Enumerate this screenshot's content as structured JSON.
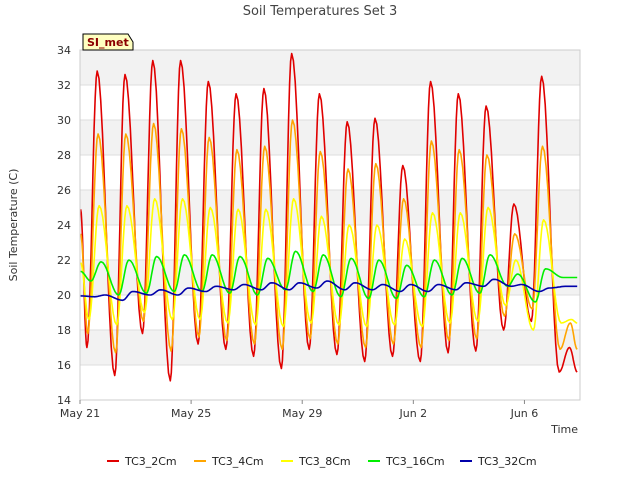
{
  "chart_data": {
    "type": "line",
    "title": "Soil Temperatures Set 3",
    "xlabel": "Time",
    "ylabel": "Soil Temperature (C)",
    "badge": "SI_met",
    "ylim": [
      14,
      34
    ],
    "yticks": [
      14,
      16,
      18,
      20,
      22,
      24,
      26,
      28,
      30,
      32,
      34
    ],
    "xlim": [
      "2023-05-21",
      "2023-06-08"
    ],
    "xticks": [
      {
        "date": "2023-05-21",
        "label": "May 21"
      },
      {
        "date": "2023-05-25",
        "label": "May 25"
      },
      {
        "date": "2023-05-29",
        "label": "May 29"
      },
      {
        "date": "2023-06-02",
        "label": "Jun 2"
      },
      {
        "date": "2023-06-06",
        "label": "Jun 6"
      }
    ],
    "grid": true,
    "legend_position": "bottom",
    "days": [
      "May 21",
      "May 22",
      "May 23",
      "May 24",
      "May 25",
      "May 26",
      "May 27",
      "May 28",
      "May 29",
      "May 30",
      "May 31",
      "Jun 1",
      "Jun 2",
      "Jun 3",
      "Jun 4",
      "Jun 5",
      "Jun 6",
      "Jun 7"
    ],
    "series": [
      {
        "name": "TC3_2Cm",
        "color": "#e00000",
        "daily_min": [
          17.0,
          15.4,
          17.8,
          15.1,
          17.2,
          16.9,
          16.5,
          15.8,
          16.9,
          16.6,
          16.2,
          16.5,
          16.2,
          16.7,
          16.8,
          18.0,
          18.5,
          15.6
        ],
        "daily_max": [
          32.8,
          32.6,
          33.4,
          33.4,
          32.2,
          31.5,
          31.8,
          33.8,
          31.5,
          29.9,
          30.1,
          27.4,
          32.2,
          31.5,
          30.8,
          25.2,
          32.5,
          17.0
        ]
      },
      {
        "name": "TC3_4Cm",
        "color": "#ffa500",
        "daily_min": [
          17.8,
          16.7,
          18.5,
          16.8,
          17.6,
          17.4,
          17.2,
          16.9,
          17.5,
          17.2,
          17.0,
          17.2,
          17.0,
          17.4,
          17.5,
          18.8,
          19.2,
          16.9
        ],
        "daily_max": [
          29.2,
          29.2,
          29.8,
          29.5,
          29.0,
          28.3,
          28.5,
          30.0,
          28.2,
          27.2,
          27.5,
          25.5,
          28.8,
          28.3,
          28.0,
          23.5,
          28.5,
          18.4
        ]
      },
      {
        "name": "TC3_8Cm",
        "color": "#ffff00",
        "daily_min": [
          18.6,
          18.3,
          19.0,
          18.6,
          18.6,
          18.4,
          18.3,
          18.2,
          18.4,
          18.3,
          18.2,
          18.3,
          18.2,
          18.4,
          18.5,
          19.4,
          18.0,
          18.4
        ],
        "daily_max": [
          25.1,
          25.1,
          25.5,
          25.5,
          25.0,
          24.9,
          24.9,
          25.5,
          24.5,
          24.0,
          24.0,
          23.2,
          24.7,
          24.7,
          25.0,
          22.0,
          24.3,
          18.6
        ]
      },
      {
        "name": "TC3_16Cm",
        "color": "#00ee00",
        "daily_min": [
          20.8,
          20.0,
          20.1,
          20.2,
          20.2,
          20.1,
          20.0,
          20.3,
          20.2,
          19.9,
          19.8,
          19.8,
          19.9,
          20.0,
          20.1,
          20.5,
          19.6,
          21.0
        ],
        "daily_max": [
          21.9,
          22.0,
          22.2,
          22.3,
          22.3,
          22.2,
          22.1,
          22.5,
          22.3,
          22.1,
          22.0,
          21.7,
          22.0,
          22.1,
          22.3,
          21.2,
          21.5,
          21.0
        ]
      },
      {
        "name": "TC3_32Cm",
        "color": "#0000aa",
        "daily_min": [
          19.9,
          19.7,
          20.0,
          20.0,
          20.2,
          20.3,
          20.3,
          20.3,
          20.4,
          20.3,
          20.3,
          20.2,
          20.2,
          20.3,
          20.5,
          20.5,
          20.2,
          20.5
        ],
        "daily_max": [
          20.0,
          20.2,
          20.3,
          20.4,
          20.5,
          20.6,
          20.7,
          20.7,
          20.8,
          20.7,
          20.6,
          20.6,
          20.6,
          20.7,
          20.9,
          20.6,
          20.4,
          20.5
        ]
      }
    ]
  }
}
